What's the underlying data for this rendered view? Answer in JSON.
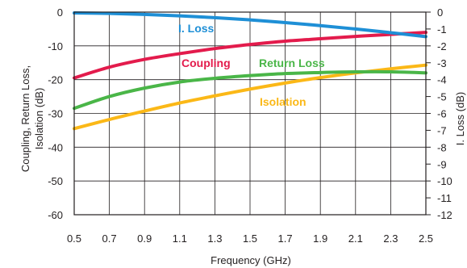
{
  "chart_data": {
    "type": "line",
    "xlabel": "Frequency (GHz)",
    "ylabel_left": "Coupling, Return Loss, Isolation (dB)",
    "ylabel_left_lines": [
      "Coupling, Return Loss,",
      "Isolation (dB)"
    ],
    "ylabel_right": "I. Loss (dB)",
    "xlim": [
      0.5,
      2.5
    ],
    "ylim_left": [
      -60,
      0
    ],
    "ylim_right": [
      -12,
      0
    ],
    "grid": true,
    "x_ticks": [
      "0.5",
      "0.7",
      "0.9",
      "1.1",
      "1.3",
      "1.5",
      "1.7",
      "1.9",
      "2.1",
      "2.3",
      "2.5"
    ],
    "y_ticks_left": [
      "0",
      "-10",
      "-20",
      "-30",
      "-40",
      "-50",
      "-60"
    ],
    "y_ticks_right": [
      "0",
      "-1",
      "-2",
      "-3",
      "-4",
      "-5",
      "-6",
      "-7",
      "-8",
      "-9",
      "-10",
      "-11",
      "-12"
    ],
    "series": [
      {
        "name": "I. Loss",
        "axis": "right",
        "color": "#1e8fd6",
        "x": [
          0.5,
          0.7,
          0.9,
          1.1,
          1.3,
          1.5,
          1.7,
          1.9,
          2.1,
          2.3,
          2.5
        ],
        "y": [
          -0.05,
          -0.08,
          -0.14,
          -0.22,
          -0.33,
          -0.46,
          -0.62,
          -0.8,
          -1.0,
          -1.22,
          -1.45
        ]
      },
      {
        "name": "Coupling",
        "axis": "left",
        "color": "#e31b4c",
        "x": [
          0.5,
          0.7,
          0.9,
          1.1,
          1.3,
          1.5,
          1.7,
          1.9,
          2.1,
          2.3,
          2.5
        ],
        "y": [
          -19.5,
          -16.3,
          -14.0,
          -12.3,
          -10.8,
          -9.6,
          -8.6,
          -7.9,
          -7.2,
          -6.6,
          -6.0
        ]
      },
      {
        "name": "Return Loss",
        "axis": "left",
        "color": "#4ab648",
        "x": [
          0.5,
          0.7,
          0.9,
          1.1,
          1.3,
          1.5,
          1.7,
          1.9,
          2.1,
          2.3,
          2.5
        ],
        "y": [
          -28.5,
          -25.0,
          -22.5,
          -20.7,
          -19.6,
          -18.8,
          -18.2,
          -17.9,
          -17.7,
          -17.7,
          -18.0
        ]
      },
      {
        "name": "Isolation",
        "axis": "left",
        "color": "#fbb817",
        "x": [
          0.5,
          0.7,
          0.9,
          1.1,
          1.3,
          1.5,
          1.7,
          1.9,
          2.1,
          2.3,
          2.5
        ],
        "y": [
          -34.5,
          -31.8,
          -29.3,
          -26.9,
          -24.8,
          -22.8,
          -21.0,
          -19.4,
          -18.0,
          -16.8,
          -15.7
        ]
      }
    ]
  }
}
